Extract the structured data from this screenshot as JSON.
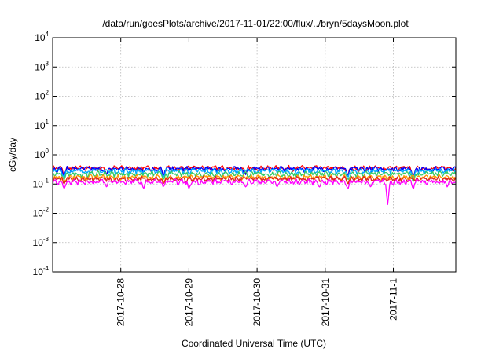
{
  "chart_data": {
    "type": "line",
    "title": "/data/run/goesPlots/archive/2017-11-01/22:00/flux/../bryn/5daysMoon.plot",
    "xlabel": "Coordinated Universal Time (UTC)",
    "ylabel": "cGy/day",
    "yscale": "log",
    "ylim": [
      0.0001,
      10000
    ],
    "xlim": [
      "2017-10-27T00:00",
      "2017-11-01T22:00"
    ],
    "y_ticks": [
      {
        "base": "10",
        "exp": "-4",
        "value": 0.0001
      },
      {
        "base": "10",
        "exp": "-3",
        "value": 0.001
      },
      {
        "base": "10",
        "exp": "-2",
        "value": 0.01
      },
      {
        "base": "10",
        "exp": "-1",
        "value": 0.1
      },
      {
        "base": "10",
        "exp": "0",
        "value": 1
      },
      {
        "base": "10",
        "exp": "1",
        "value": 10
      },
      {
        "base": "10",
        "exp": "2",
        "value": 100
      },
      {
        "base": "10",
        "exp": "3",
        "value": 1000
      },
      {
        "base": "10",
        "exp": "4",
        "value": 10000
      }
    ],
    "x_ticks": [
      {
        "label": "2017-10-28",
        "value": "2017-10-28T00:00"
      },
      {
        "label": "2017-10-29",
        "value": "2017-10-29T00:00"
      },
      {
        "label": "2017-10-30",
        "value": "2017-10-30T00:00"
      },
      {
        "label": "2017-10-31",
        "value": "2017-10-31T00:00"
      },
      {
        "label": "2017-11-1",
        "value": "2017-11-01T00:00"
      }
    ],
    "grid": true,
    "legend": "none",
    "series": [
      {
        "color": "#ff0000",
        "approx_level": 0.35,
        "dips": [
          [
            "2017-10-27T04:00",
            0.2
          ],
          [
            "2017-10-27T19:00",
            0.22
          ],
          [
            "2017-10-28T15:00",
            0.2
          ],
          [
            "2017-10-29T20:00",
            0.22
          ],
          [
            "2017-10-31T08:00",
            0.2
          ],
          [
            "2017-11-01T07:00",
            0.18
          ]
        ]
      },
      {
        "color": "#0000ff",
        "approx_level": 0.33,
        "dips": [
          [
            "2017-10-27T04:00",
            0.19
          ],
          [
            "2017-10-27T19:00",
            0.21
          ],
          [
            "2017-10-28T15:00",
            0.19
          ],
          [
            "2017-10-29T20:00",
            0.21
          ],
          [
            "2017-10-31T08:00",
            0.19
          ],
          [
            "2017-11-01T07:00",
            0.17
          ]
        ]
      },
      {
        "color": "#00aaff",
        "approx_level": 0.28,
        "dips": [
          [
            "2017-10-27T04:00",
            0.17
          ],
          [
            "2017-10-28T15:00",
            0.17
          ],
          [
            "2017-10-31T08:00",
            0.17
          ],
          [
            "2017-11-01T07:00",
            0.15
          ]
        ]
      },
      {
        "color": "#33cc66",
        "approx_level": 0.22,
        "dips": [
          [
            "2017-10-27T04:00",
            0.14
          ],
          [
            "2017-10-28T15:00",
            0.14
          ],
          [
            "2017-10-31T08:00",
            0.14
          ],
          [
            "2017-11-01T07:00",
            0.12
          ]
        ]
      },
      {
        "color": "#ff9900",
        "approx_level": 0.17,
        "dips": [
          [
            "2017-10-27T04:00",
            0.11
          ],
          [
            "2017-10-28T15:00",
            0.11
          ],
          [
            "2017-10-31T08:00",
            0.11
          ]
        ]
      },
      {
        "color": "#dd2222",
        "approx_level": 0.15,
        "dips": [
          [
            "2017-10-27T04:00",
            0.1
          ],
          [
            "2017-10-28T15:00",
            0.1
          ],
          [
            "2017-10-31T08:00",
            0.1
          ]
        ]
      },
      {
        "color": "#ff00ff",
        "approx_level": 0.12,
        "dips": [
          [
            "2017-10-27T04:00",
            0.07
          ],
          [
            "2017-10-27T19:00",
            0.08
          ],
          [
            "2017-10-28T08:00",
            0.07
          ],
          [
            "2017-10-28T15:00",
            0.08
          ],
          [
            "2017-10-29T00:00",
            0.07
          ],
          [
            "2017-10-29T20:00",
            0.08
          ],
          [
            "2017-10-30T07:00",
            0.08
          ],
          [
            "2017-10-30T22:00",
            0.08
          ],
          [
            "2017-10-31T08:00",
            0.07
          ],
          [
            "2017-10-31T16:00",
            0.08
          ],
          [
            "2017-10-31T22:00",
            0.02
          ],
          [
            "2017-11-01T07:00",
            0.07
          ],
          [
            "2017-11-01T19:00",
            0.08
          ]
        ]
      }
    ]
  }
}
